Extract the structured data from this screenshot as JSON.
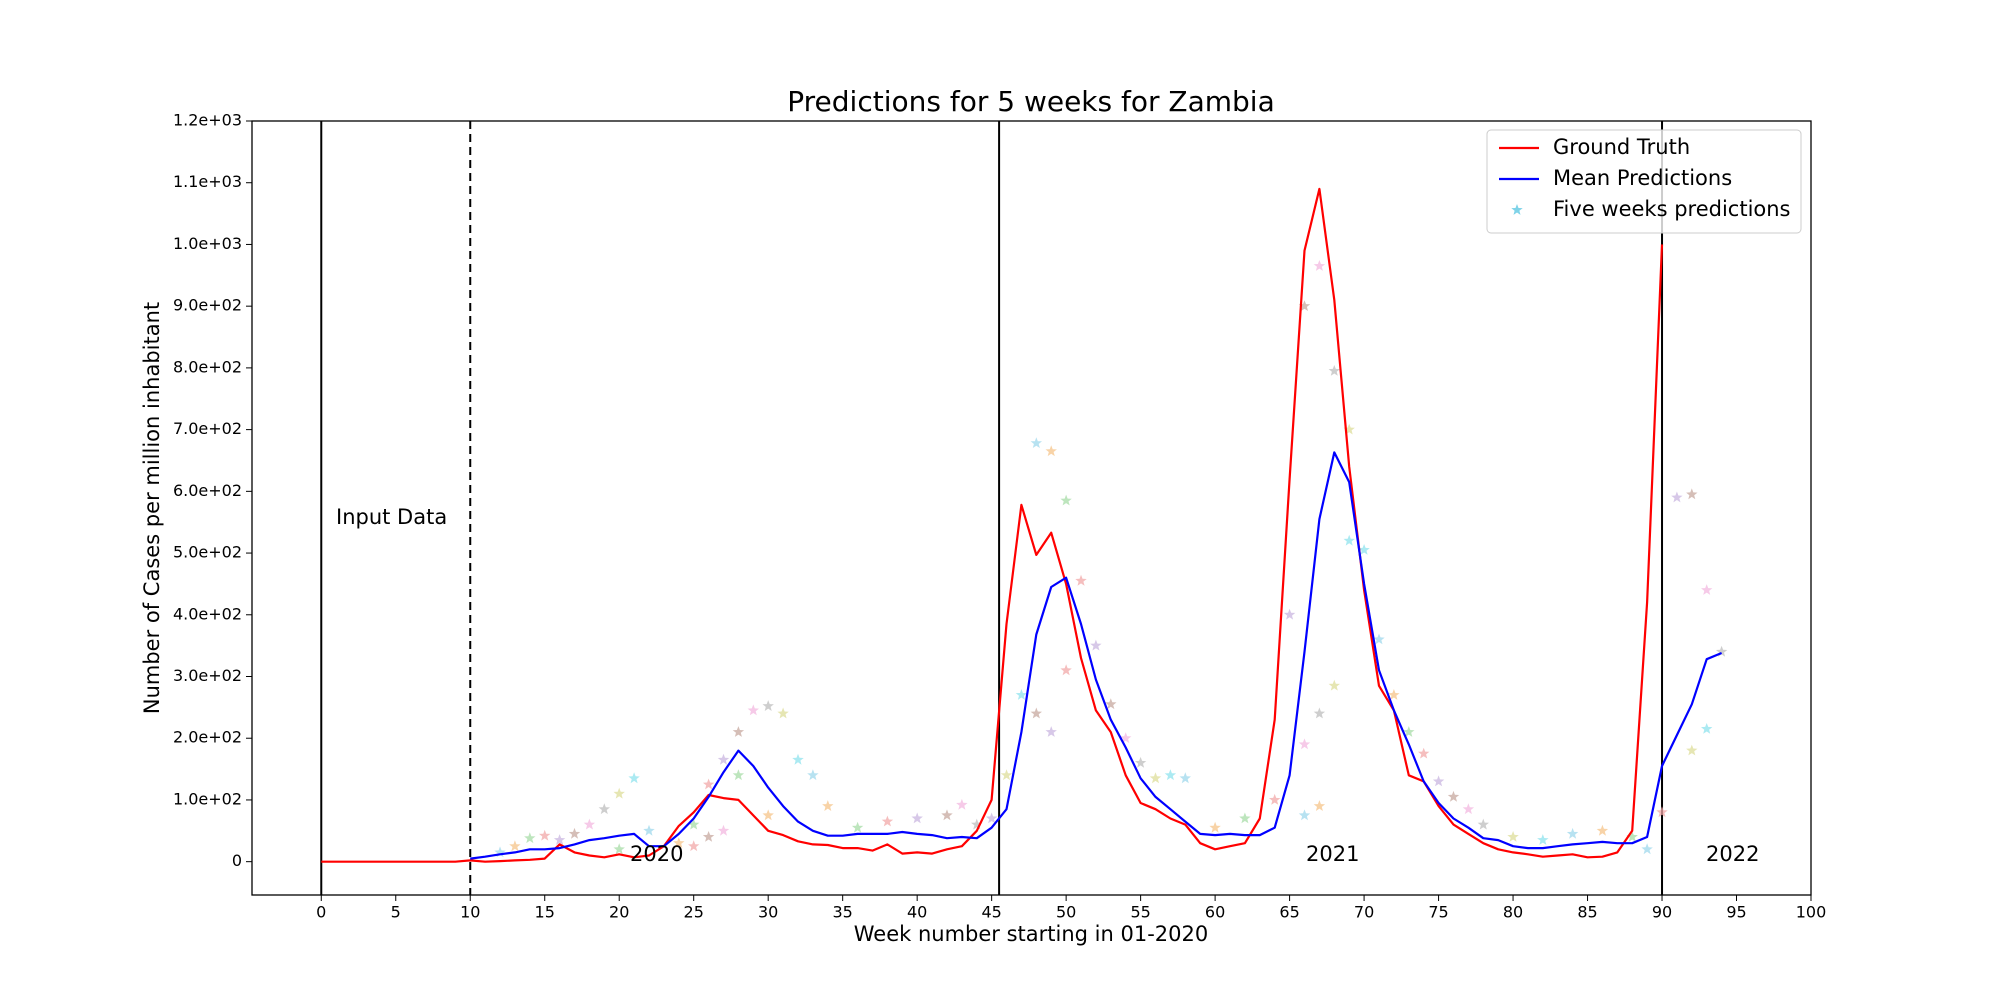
{
  "chart_data": {
    "type": "line",
    "title": "Predictions for 5 weeks for Zambia",
    "xlabel": "Week number starting in 01-2020",
    "ylabel": "Number of Cases per million inhabitant",
    "xlim": [
      -4.65,
      100
    ],
    "ylim": [
      -54,
      1200
    ],
    "xticks": [
      0,
      5,
      10,
      15,
      20,
      25,
      30,
      35,
      40,
      45,
      50,
      55,
      60,
      65,
      70,
      75,
      80,
      85,
      90,
      95,
      100
    ],
    "yticks": [
      0,
      {
        "value": 100,
        "label": "1.0e+02"
      },
      {
        "value": 200,
        "label": "2.0e+02"
      },
      {
        "value": 300,
        "label": "3.0e+02"
      },
      {
        "value": 400,
        "label": "4.0e+02"
      },
      {
        "value": 500,
        "label": "5.0e+02"
      },
      {
        "value": 600,
        "label": "6.0e+02"
      },
      {
        "value": 700,
        "label": "7.0e+02"
      },
      {
        "value": 800,
        "label": "8.0e+02"
      },
      {
        "value": 900,
        "label": "9.0e+02"
      },
      {
        "value": 1000,
        "label": "1.0e+03"
      },
      {
        "value": 1100,
        "label": "1.1e+03"
      },
      {
        "value": 1200,
        "label": "1.2e+03"
      }
    ],
    "vlines": [
      0,
      45.5,
      90
    ],
    "dashed_vlines": [
      10
    ],
    "annotations": [
      "Input Data",
      "2020",
      "2021",
      "2022"
    ],
    "legend": "upper right",
    "series": [
      {
        "name": "Ground Truth",
        "color": "#ff0000",
        "kind": "line",
        "x": [
          0,
          1,
          2,
          3,
          4,
          5,
          6,
          7,
          8,
          9,
          10,
          11,
          12,
          13,
          14,
          15,
          16,
          17,
          18,
          19,
          20,
          21,
          22,
          23,
          24,
          25,
          26,
          27,
          28,
          29,
          30,
          31,
          32,
          33,
          34,
          35,
          36,
          37,
          38,
          39,
          40,
          41,
          42,
          43,
          44,
          45,
          46,
          47,
          48,
          49,
          50,
          51,
          52,
          53,
          54,
          55,
          56,
          57,
          58,
          59,
          60,
          61,
          62,
          63,
          64,
          65,
          66,
          67,
          68,
          69,
          70,
          71,
          72,
          73,
          74,
          75,
          76,
          77,
          78,
          79,
          80,
          81,
          82,
          83,
          84,
          85,
          86,
          87,
          88,
          89,
          90
        ],
        "values": [
          0,
          0,
          0,
          0,
          0,
          0,
          0,
          0,
          0,
          0,
          2,
          0,
          1,
          2,
          3,
          5,
          28,
          15,
          10,
          7,
          12,
          7,
          10,
          25,
          58,
          80,
          108,
          103,
          100,
          75,
          50,
          43,
          33,
          28,
          27,
          22,
          22,
          18,
          28,
          13,
          15,
          13,
          20,
          25,
          50,
          100,
          385,
          578,
          497,
          533,
          450,
          330,
          245,
          210,
          140,
          95,
          85,
          70,
          60,
          30,
          20,
          25,
          30,
          70,
          230,
          620,
          990,
          1090,
          910,
          640,
          440,
          285,
          245,
          140,
          130,
          90,
          60,
          45,
          30,
          20,
          15,
          12,
          8,
          10,
          12,
          7,
          8,
          15,
          50,
          420,
          1000
        ]
      },
      {
        "name": "Mean Predictions",
        "color": "#0000ff",
        "kind": "line",
        "x": [
          10,
          11,
          12,
          13,
          14,
          15,
          16,
          17,
          18,
          19,
          20,
          21,
          22,
          23,
          24,
          25,
          26,
          27,
          28,
          29,
          30,
          31,
          32,
          33,
          34,
          35,
          36,
          37,
          38,
          39,
          40,
          41,
          42,
          43,
          44,
          45,
          46,
          47,
          48,
          49,
          50,
          51,
          52,
          53,
          54,
          55,
          56,
          57,
          58,
          59,
          60,
          61,
          62,
          63,
          64,
          65,
          66,
          67,
          68,
          69,
          70,
          71,
          72,
          73,
          74,
          75,
          76,
          77,
          78,
          79,
          80,
          81,
          82,
          83,
          84,
          85,
          86,
          87,
          88,
          89,
          90,
          91,
          92,
          93,
          94
        ],
        "values": [
          5,
          8,
          12,
          15,
          20,
          20,
          22,
          28,
          35,
          38,
          42,
          45,
          25,
          25,
          45,
          70,
          105,
          145,
          180,
          155,
          120,
          90,
          65,
          50,
          42,
          42,
          45,
          45,
          45,
          48,
          45,
          43,
          38,
          40,
          38,
          55,
          85,
          210,
          368,
          445,
          460,
          385,
          295,
          230,
          185,
          135,
          105,
          85,
          65,
          45,
          43,
          45,
          43,
          43,
          55,
          140,
          340,
          555,
          663,
          615,
          450,
          310,
          245,
          190,
          130,
          95,
          70,
          55,
          38,
          35,
          25,
          22,
          22,
          25,
          28,
          30,
          32,
          30,
          30,
          40,
          155,
          205,
          255,
          328,
          338
        ]
      },
      {
        "name": "Five weeks predictions",
        "color": "#7fd3e8",
        "kind": "scatter",
        "palette": [
          "#9fd8ec",
          "#f5c48a",
          "#a7dca7",
          "#f2a8a8",
          "#c9b5e0",
          "#c7a89f",
          "#f3b8e0",
          "#bdbdbd",
          "#dddd99",
          "#8fe3ee"
        ],
        "x": [
          12,
          13,
          14,
          15,
          16,
          17,
          18,
          19,
          20,
          21,
          22,
          24,
          25,
          26,
          27,
          28,
          29,
          30,
          31,
          32,
          33,
          34,
          36,
          38,
          40,
          42,
          43,
          44,
          46,
          47,
          48,
          49,
          50,
          51,
          52,
          53,
          54,
          55,
          56,
          57,
          58,
          60,
          62,
          64,
          65,
          66,
          67,
          68,
          69,
          70,
          71,
          72,
          73,
          74,
          75,
          76,
          77,
          78,
          80,
          82,
          84,
          86,
          88,
          90,
          91,
          92,
          93,
          94,
          92,
          93,
          89,
          30,
          28,
          50,
          49,
          48,
          66,
          67,
          68,
          69,
          66,
          67,
          20,
          25,
          45,
          26,
          27
        ],
        "values": [
          15,
          25,
          38,
          42,
          35,
          45,
          60,
          85,
          110,
          135,
          50,
          30,
          60,
          125,
          165,
          210,
          245,
          252,
          240,
          165,
          140,
          90,
          55,
          65,
          70,
          75,
          92,
          60,
          140,
          270,
          678,
          665,
          585,
          455,
          350,
          255,
          200,
          160,
          135,
          140,
          135,
          55,
          70,
          100,
          400,
          900,
          965,
          795,
          700,
          505,
          360,
          270,
          210,
          175,
          130,
          105,
          85,
          60,
          40,
          35,
          45,
          50,
          40,
          80,
          590,
          595,
          440,
          340,
          180,
          215,
          20,
          75,
          140,
          310,
          210,
          240,
          190,
          240,
          285,
          520,
          75,
          90,
          20,
          25,
          70,
          40,
          50
        ]
      }
    ]
  }
}
